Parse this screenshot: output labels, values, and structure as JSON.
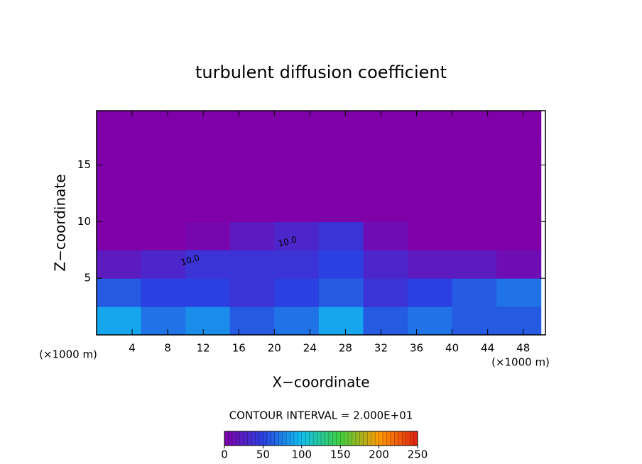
{
  "chart_data": {
    "type": "contour",
    "title": "turbulent diffusion coefficient",
    "x_label": "X−coordinate",
    "y_label": "Z−coordinate",
    "x_unit": "(×1000 m)",
    "y_unit": "(×1000 m)",
    "contour_note": "CONTOUR INTERVAL = 2.000E+01",
    "contour_labels": [
      "10.0",
      "10.0"
    ],
    "xlim": [
      0,
      50.5
    ],
    "ylim": [
      0,
      19.8
    ],
    "xticks": [
      4,
      8,
      12,
      16,
      20,
      24,
      28,
      32,
      36,
      40,
      44,
      48
    ],
    "yticks": [
      5,
      10,
      15
    ],
    "x": [
      2.5,
      7.5,
      12.5,
      17.5,
      22.5,
      27.5,
      32.5,
      37.5,
      42.5,
      47.5
    ],
    "z": [
      1.25,
      3.75,
      6.25,
      8.75,
      11.25,
      13.75,
      16.25,
      18.75
    ],
    "values": [
      [
        90,
        70,
        80,
        60,
        70,
        90,
        60,
        70,
        60,
        60
      ],
      [
        60,
        50,
        50,
        40,
        50,
        60,
        40,
        50,
        60,
        70
      ],
      [
        20,
        30,
        40,
        40,
        40,
        50,
        30,
        20,
        20,
        10
      ],
      [
        0,
        0,
        5,
        20,
        30,
        40,
        10,
        0,
        0,
        0
      ],
      [
        0,
        0,
        0,
        0,
        0,
        0,
        0,
        0,
        0,
        0
      ],
      [
        0,
        0,
        0,
        0,
        0,
        0,
        0,
        0,
        0,
        0
      ],
      [
        0,
        0,
        0,
        0,
        0,
        0,
        0,
        0,
        0,
        0
      ],
      [
        0,
        0,
        0,
        0,
        0,
        0,
        0,
        0,
        0,
        0
      ]
    ],
    "clim": [
      0,
      250
    ],
    "cticks": [
      0,
      50,
      100,
      150,
      200,
      250
    ],
    "colorscale": [
      "#7f00a8",
      "#2a40e0",
      "#10c0f0",
      "#40d040",
      "#ff9a00",
      "#e02010"
    ]
  }
}
